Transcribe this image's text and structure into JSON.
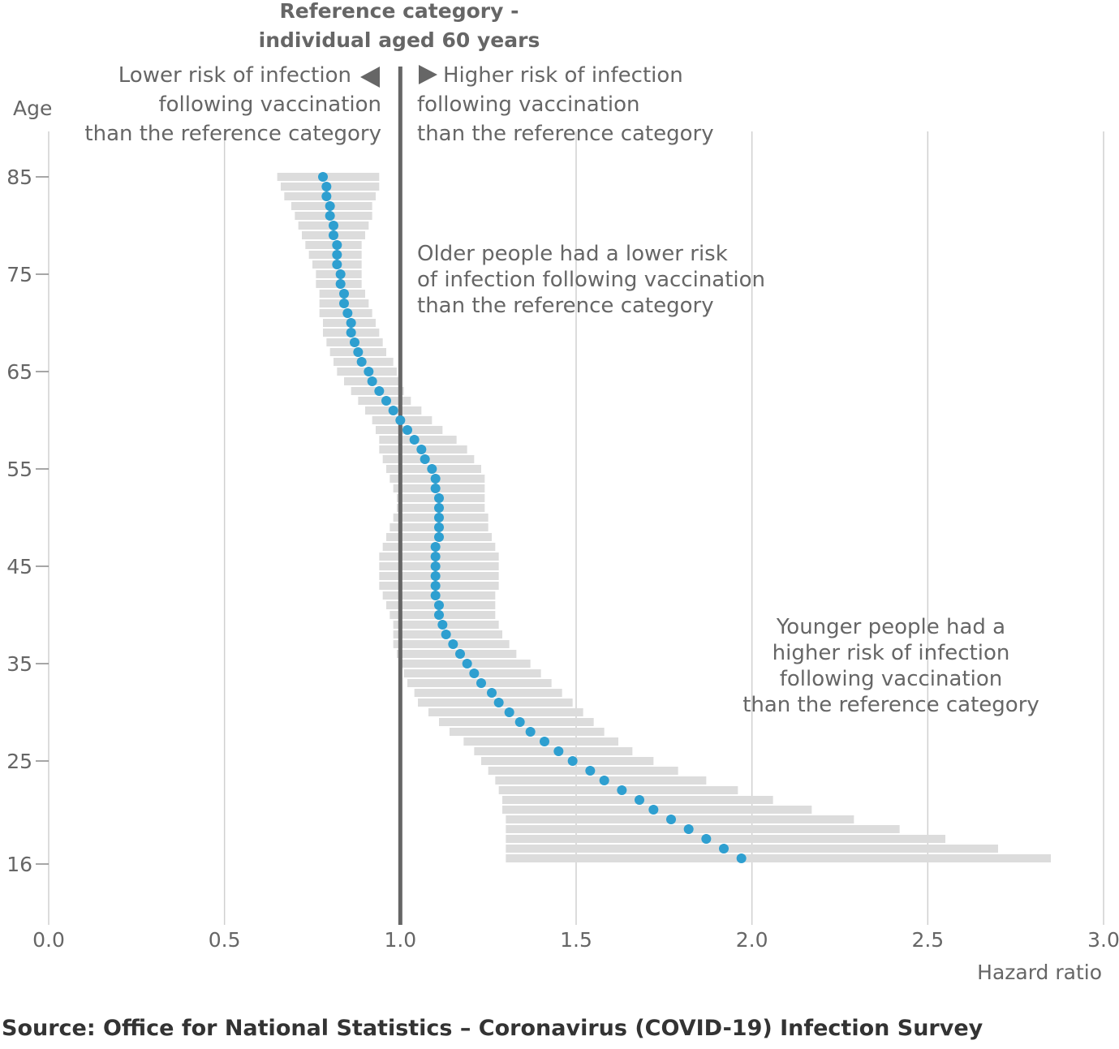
{
  "chart_data": {
    "type": "scatter",
    "subtype": "point-with-confidence-interval",
    "orientation": "horizontal",
    "xlabel": "Hazard ratio",
    "ylabel": "Age",
    "xlim": [
      0,
      3
    ],
    "ylim": [
      16,
      85
    ],
    "x_ticks": [
      "0.0",
      "0.5",
      "1.0",
      "1.5",
      "2.0",
      "2.5",
      "3.0"
    ],
    "y_ticks": [
      "16",
      "25",
      "35",
      "45",
      "55",
      "65",
      "75",
      "85"
    ],
    "grid": "vertical",
    "reference": {
      "value": 1.0,
      "label_line1": "Reference category -",
      "label_line2": "individual aged 60 years"
    },
    "direction_labels": {
      "lower": [
        "Lower risk of infection",
        "following vaccination",
        "than the reference category"
      ],
      "higher": [
        "Higher risk of infection",
        "following vaccination",
        "than the reference category"
      ]
    },
    "annotations": [
      {
        "lines": [
          "Older people had a lower risk",
          "of infection following vaccination",
          "than the reference category"
        ]
      },
      {
        "lines": [
          "Younger people had a",
          "higher risk of infection",
          "following vaccination",
          "than the reference category"
        ]
      }
    ],
    "colors": {
      "point": "#2e9fd0",
      "interval": "#dcdcdc",
      "reference_line": "#666666",
      "grid": "#d0d0d0"
    },
    "points": [
      {
        "age": 85,
        "hr": 0.78,
        "lo": 0.65,
        "hi": 0.94
      },
      {
        "age": 84,
        "hr": 0.79,
        "lo": 0.66,
        "hi": 0.94
      },
      {
        "age": 83,
        "hr": 0.79,
        "lo": 0.67,
        "hi": 0.93
      },
      {
        "age": 82,
        "hr": 0.8,
        "lo": 0.69,
        "hi": 0.92
      },
      {
        "age": 81,
        "hr": 0.8,
        "lo": 0.7,
        "hi": 0.92
      },
      {
        "age": 80,
        "hr": 0.81,
        "lo": 0.71,
        "hi": 0.91
      },
      {
        "age": 79,
        "hr": 0.81,
        "lo": 0.72,
        "hi": 0.9
      },
      {
        "age": 78,
        "hr": 0.82,
        "lo": 0.73,
        "hi": 0.89
      },
      {
        "age": 77,
        "hr": 0.82,
        "lo": 0.74,
        "hi": 0.89
      },
      {
        "age": 76,
        "hr": 0.82,
        "lo": 0.75,
        "hi": 0.89
      },
      {
        "age": 75,
        "hr": 0.83,
        "lo": 0.76,
        "hi": 0.89
      },
      {
        "age": 74,
        "hr": 0.83,
        "lo": 0.76,
        "hi": 0.89
      },
      {
        "age": 73,
        "hr": 0.84,
        "lo": 0.77,
        "hi": 0.9
      },
      {
        "age": 72,
        "hr": 0.84,
        "lo": 0.77,
        "hi": 0.91
      },
      {
        "age": 71,
        "hr": 0.85,
        "lo": 0.77,
        "hi": 0.92
      },
      {
        "age": 70,
        "hr": 0.86,
        "lo": 0.78,
        "hi": 0.93
      },
      {
        "age": 69,
        "hr": 0.86,
        "lo": 0.78,
        "hi": 0.94
      },
      {
        "age": 68,
        "hr": 0.87,
        "lo": 0.79,
        "hi": 0.95
      },
      {
        "age": 67,
        "hr": 0.88,
        "lo": 0.8,
        "hi": 0.96
      },
      {
        "age": 66,
        "hr": 0.89,
        "lo": 0.81,
        "hi": 0.98
      },
      {
        "age": 65,
        "hr": 0.91,
        "lo": 0.82,
        "hi": 0.99
      },
      {
        "age": 64,
        "hr": 0.92,
        "lo": 0.84,
        "hi": 1.0
      },
      {
        "age": 63,
        "hr": 0.94,
        "lo": 0.86,
        "hi": 1.01
      },
      {
        "age": 62,
        "hr": 0.96,
        "lo": 0.88,
        "hi": 1.03
      },
      {
        "age": 61,
        "hr": 0.98,
        "lo": 0.9,
        "hi": 1.06
      },
      {
        "age": 60,
        "hr": 1.0,
        "lo": 0.92,
        "hi": 1.09
      },
      {
        "age": 59,
        "hr": 1.02,
        "lo": 0.93,
        "hi": 1.12
      },
      {
        "age": 58,
        "hr": 1.04,
        "lo": 0.94,
        "hi": 1.16
      },
      {
        "age": 57,
        "hr": 1.06,
        "lo": 0.94,
        "hi": 1.19
      },
      {
        "age": 56,
        "hr": 1.07,
        "lo": 0.95,
        "hi": 1.21
      },
      {
        "age": 55,
        "hr": 1.09,
        "lo": 0.96,
        "hi": 1.23
      },
      {
        "age": 54,
        "hr": 1.1,
        "lo": 0.97,
        "hi": 1.24
      },
      {
        "age": 53,
        "hr": 1.1,
        "lo": 0.98,
        "hi": 1.24
      },
      {
        "age": 52,
        "hr": 1.11,
        "lo": 0.99,
        "hi": 1.24
      },
      {
        "age": 51,
        "hr": 1.11,
        "lo": 0.99,
        "hi": 1.24
      },
      {
        "age": 50,
        "hr": 1.11,
        "lo": 0.98,
        "hi": 1.25
      },
      {
        "age": 49,
        "hr": 1.11,
        "lo": 0.97,
        "hi": 1.25
      },
      {
        "age": 48,
        "hr": 1.11,
        "lo": 0.96,
        "hi": 1.26
      },
      {
        "age": 47,
        "hr": 1.1,
        "lo": 0.95,
        "hi": 1.27
      },
      {
        "age": 46,
        "hr": 1.1,
        "lo": 0.94,
        "hi": 1.28
      },
      {
        "age": 45,
        "hr": 1.1,
        "lo": 0.94,
        "hi": 1.28
      },
      {
        "age": 44,
        "hr": 1.1,
        "lo": 0.94,
        "hi": 1.28
      },
      {
        "age": 43,
        "hr": 1.1,
        "lo": 0.94,
        "hi": 1.28
      },
      {
        "age": 42,
        "hr": 1.1,
        "lo": 0.95,
        "hi": 1.27
      },
      {
        "age": 41,
        "hr": 1.11,
        "lo": 0.96,
        "hi": 1.27
      },
      {
        "age": 40,
        "hr": 1.11,
        "lo": 0.97,
        "hi": 1.27
      },
      {
        "age": 39,
        "hr": 1.12,
        "lo": 0.98,
        "hi": 1.28
      },
      {
        "age": 38,
        "hr": 1.13,
        "lo": 0.98,
        "hi": 1.29
      },
      {
        "age": 37,
        "hr": 1.15,
        "lo": 0.98,
        "hi": 1.31
      },
      {
        "age": 36,
        "hr": 1.17,
        "lo": 0.99,
        "hi": 1.33
      },
      {
        "age": 35,
        "hr": 1.19,
        "lo": 1.0,
        "hi": 1.37
      },
      {
        "age": 34,
        "hr": 1.21,
        "lo": 1.01,
        "hi": 1.4
      },
      {
        "age": 33,
        "hr": 1.23,
        "lo": 1.02,
        "hi": 1.43
      },
      {
        "age": 32,
        "hr": 1.26,
        "lo": 1.04,
        "hi": 1.46
      },
      {
        "age": 31,
        "hr": 1.28,
        "lo": 1.05,
        "hi": 1.49
      },
      {
        "age": 30,
        "hr": 1.31,
        "lo": 1.08,
        "hi": 1.52
      },
      {
        "age": 29,
        "hr": 1.34,
        "lo": 1.11,
        "hi": 1.55
      },
      {
        "age": 28,
        "hr": 1.37,
        "lo": 1.14,
        "hi": 1.58
      },
      {
        "age": 27,
        "hr": 1.41,
        "lo": 1.18,
        "hi": 1.62
      },
      {
        "age": 26,
        "hr": 1.45,
        "lo": 1.21,
        "hi": 1.66
      },
      {
        "age": 25,
        "hr": 1.49,
        "lo": 1.23,
        "hi": 1.72
      },
      {
        "age": 24,
        "hr": 1.54,
        "lo": 1.25,
        "hi": 1.79
      },
      {
        "age": 23,
        "hr": 1.58,
        "lo": 1.27,
        "hi": 1.87
      },
      {
        "age": 22,
        "hr": 1.63,
        "lo": 1.28,
        "hi": 1.96
      },
      {
        "age": 21,
        "hr": 1.68,
        "lo": 1.29,
        "hi": 2.06
      },
      {
        "age": 20,
        "hr": 1.72,
        "lo": 1.29,
        "hi": 2.17
      },
      {
        "age": 19,
        "hr": 1.77,
        "lo": 1.3,
        "hi": 2.29
      },
      {
        "age": 18,
        "hr": 1.82,
        "lo": 1.3,
        "hi": 2.42
      },
      {
        "age": 17,
        "hr": 1.87,
        "lo": 1.3,
        "hi": 2.55
      },
      {
        "age": 16,
        "hr": 1.92,
        "lo": 1.3,
        "hi": 2.7
      },
      {
        "age": 15,
        "hr": 1.97,
        "lo": 1.3,
        "hi": 2.85
      }
    ]
  },
  "source": "Source: Office for National Statistics – Coronavirus (COVID-19) Infection Survey"
}
